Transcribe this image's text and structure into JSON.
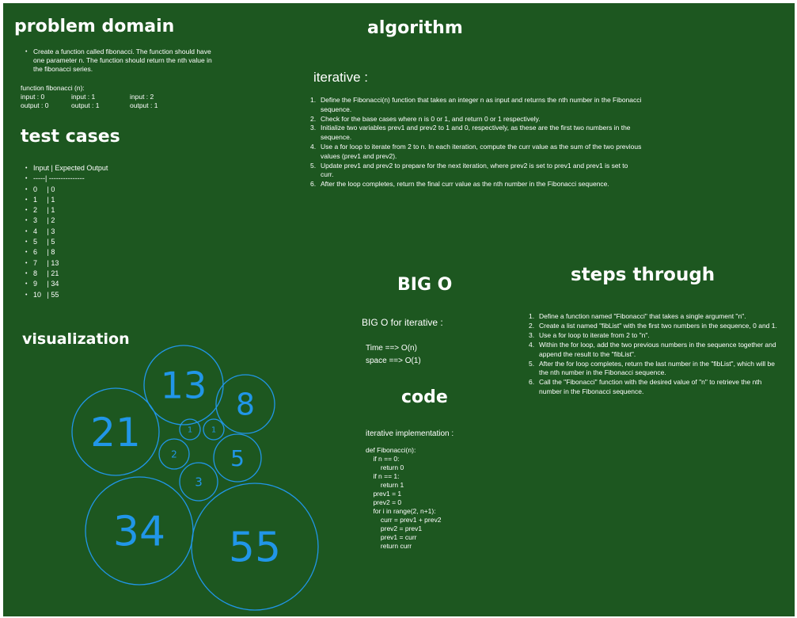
{
  "problem_domain": {
    "heading": "problem domain",
    "description": "Create a function called fibonacci. The function should have one parameter n. The function should return the nth value in the fibonacci series.",
    "signature": "function fibonacci (n):",
    "examples": [
      {
        "input": "input : 0",
        "output": "output : 0"
      },
      {
        "input": "input : 1",
        "output": "output : 1"
      },
      {
        "input": "input : 2",
        "output": "output : 1"
      }
    ]
  },
  "test_cases": {
    "heading": "test cases",
    "header": "Input | Expected Output",
    "divider": "-----| ---------------",
    "rows": [
      "0     | 0",
      "1     | 1",
      "2     | 1",
      "3     | 2",
      "4     | 3",
      "5     | 5",
      "6     | 8",
      "7     | 13",
      "8     | 21",
      "9     | 34",
      "10   | 55"
    ]
  },
  "visualization": {
    "heading": "visualization",
    "circle_color": "#2196e8",
    "circles": [
      {
        "label": "13",
        "value": 13
      },
      {
        "label": "8",
        "value": 8
      },
      {
        "label": "21",
        "value": 21
      },
      {
        "label": "1",
        "value": 1
      },
      {
        "label": "1",
        "value": 1
      },
      {
        "label": "2",
        "value": 2
      },
      {
        "label": "5",
        "value": 5
      },
      {
        "label": "3",
        "value": 3
      },
      {
        "label": "34",
        "value": 34
      },
      {
        "label": "55",
        "value": 55
      }
    ]
  },
  "algorithm": {
    "heading": "algorithm",
    "subheading": "iterative :",
    "steps": [
      "Define the Fibonacci(n) function that takes an integer n as input and returns the nth number in the Fibonacci sequence.",
      "Check for the base cases where n is 0 or 1, and return 0 or 1 respectively.",
      "Initialize two variables prev1 and prev2 to 1 and 0, respectively, as these are the first two numbers in the sequence.",
      "Use a for loop to iterate from 2 to n. In each iteration, compute the curr value as the sum of the two previous values (prev1 and prev2).",
      "Update prev1 and prev2 to prepare for the next iteration, where prev2 is set to prev1 and prev1 is set to curr.",
      "After the loop completes, return the final curr value as the nth number in the Fibonacci sequence."
    ]
  },
  "big_o": {
    "heading": "BIG O",
    "subheading": "BIG O for iterative :",
    "time": "Time ==> O(n)",
    "space": "space ==> O(1)"
  },
  "code": {
    "heading": "code",
    "subheading": "iterative implementation :",
    "lines": [
      "def Fibonacci(n):",
      "    if n == 0:",
      "        return 0",
      "    if n == 1:",
      "        return 1",
      "    prev1 = 1",
      "    prev2 = 0",
      "    for i in range(2, n+1):",
      "        curr = prev1 + prev2",
      "        prev2 = prev1",
      "        prev1 = curr",
      "        return curr"
    ]
  },
  "steps_through": {
    "heading": "steps through",
    "steps": [
      "Define a function named \"Fibonacci\" that takes a single argument \"n\".",
      "Create a list named \"fibList\" with the first two numbers in the sequence, 0 and 1.",
      "Use a for loop to iterate from 2 to \"n\".",
      "Within the for loop, add the two previous numbers in the sequence together and append the result to the \"fibList\".",
      "After the for loop completes, return the last number in the \"fibList\", which will be the nth number in the Fibonacci sequence.",
      "Call the \"Fibonacci\" function with the desired value of \"n\" to retrieve the nth number in the Fibonacci sequence."
    ]
  }
}
